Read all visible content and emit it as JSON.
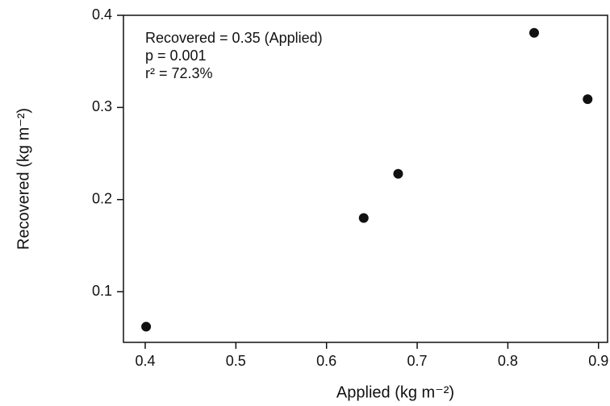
{
  "chart_data": {
    "type": "scatter",
    "x_label": "Applied (kg m⁻²)",
    "y_label": "Recovered (kg m⁻²)",
    "annotations": [
      "Recovered = 0.35 (Applied)",
      "p = 0.001",
      "r² = 72.3%"
    ],
    "x": [
      0.401,
      0.641,
      0.679,
      0.829,
      0.888
    ],
    "values": [
      0.062,
      0.18,
      0.228,
      0.381,
      0.309
    ],
    "color": "#111111",
    "xlim": [
      0.376,
      0.91
    ],
    "xticks": [
      0.4,
      0.5,
      0.6,
      0.7,
      0.8,
      0.9
    ],
    "ylim": [
      0.045,
      0.4
    ],
    "yticks": [
      0.1,
      0.2,
      0.3,
      0.4
    ],
    "grid": false
  }
}
